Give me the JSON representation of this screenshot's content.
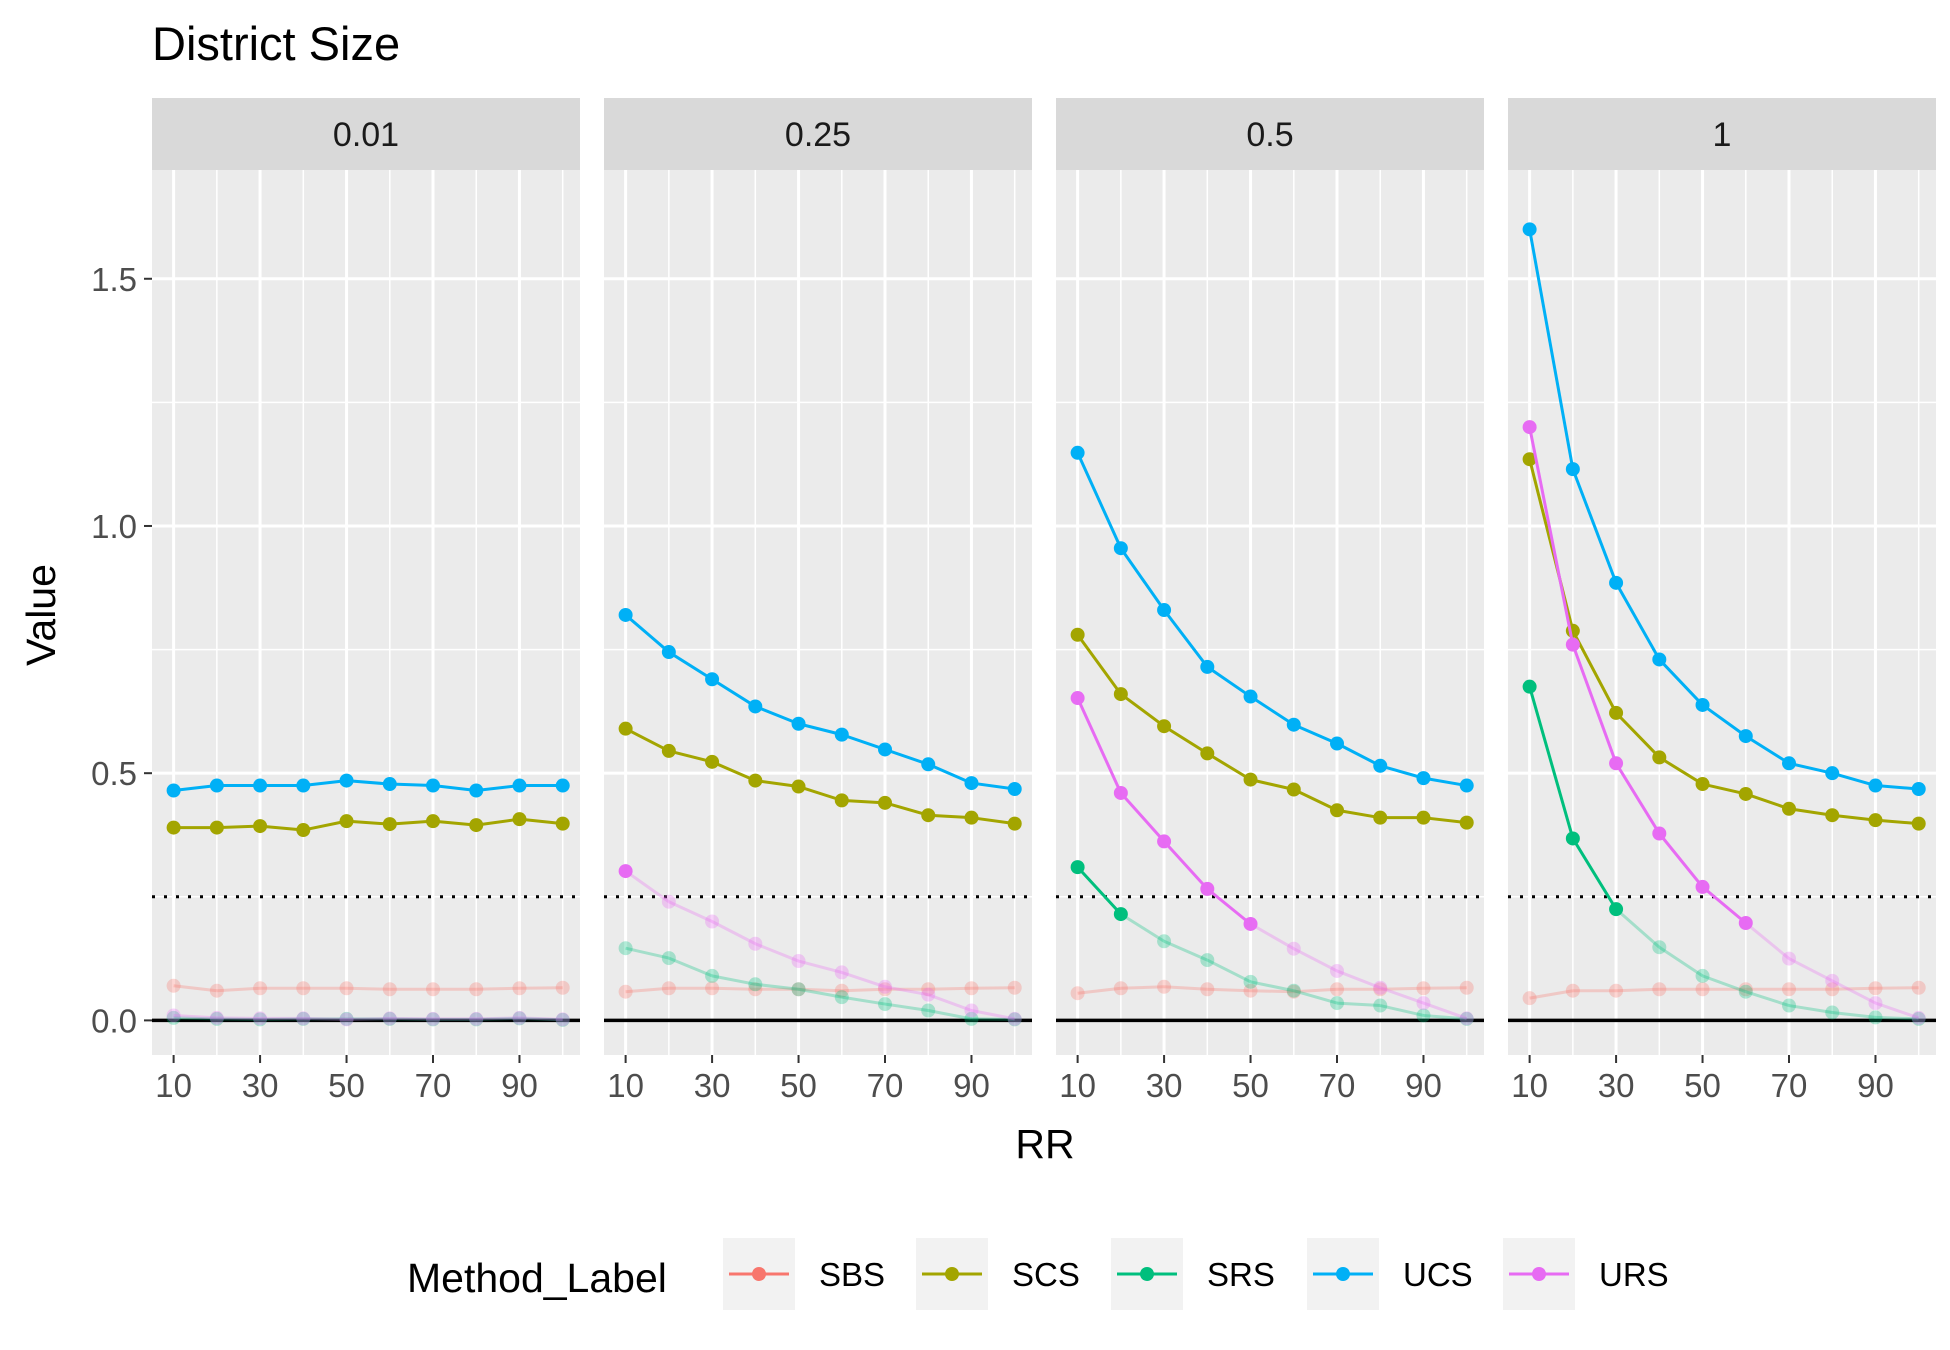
{
  "chart_data": {
    "type": "line",
    "title": "District Size",
    "xlabel": "RR",
    "ylabel": "Value",
    "facet_labels": [
      "0.01",
      "0.25",
      "0.5",
      "1"
    ],
    "xlim": [
      5,
      104
    ],
    "ylim": [
      -0.07,
      1.72
    ],
    "x": [
      10,
      20,
      30,
      40,
      50,
      60,
      70,
      80,
      90,
      100
    ],
    "x_ticks": [
      10,
      30,
      50,
      70,
      90
    ],
    "y_ticks": [
      0.0,
      0.5,
      1.0,
      1.5
    ],
    "y_tick_labels": [
      "0.0",
      "0.5",
      "1.0",
      "1.5"
    ],
    "reference_lines": [
      {
        "y": 0.0,
        "style": "solid"
      },
      {
        "y": 0.25,
        "style": "dotted"
      }
    ],
    "legend": {
      "title": "Method_Label",
      "position": "bottom"
    },
    "faded_points_note": "faded",
    "series": [
      {
        "name": "SBS",
        "color": "#F8766D",
        "panels": [
          [
            0.07,
            0.06,
            0.065,
            0.065,
            0.065,
            0.063,
            0.063,
            0.063,
            0.065,
            0.066
          ],
          [
            0.058,
            0.065,
            0.065,
            0.063,
            0.063,
            0.06,
            0.063,
            0.063,
            0.065,
            0.066
          ],
          [
            0.055,
            0.065,
            0.068,
            0.063,
            0.06,
            0.058,
            0.063,
            0.063,
            0.065,
            0.066
          ],
          [
            0.045,
            0.06,
            0.06,
            0.063,
            0.063,
            0.063,
            0.063,
            0.063,
            0.065,
            0.066
          ]
        ]
      },
      {
        "name": "SCS",
        "color": "#A3A500",
        "panels": [
          [
            0.39,
            0.39,
            0.393,
            0.385,
            0.403,
            0.397,
            0.403,
            0.395,
            0.407,
            0.398
          ],
          [
            0.59,
            0.545,
            0.523,
            0.485,
            0.473,
            0.445,
            0.44,
            0.415,
            0.41,
            0.398
          ],
          [
            0.78,
            0.66,
            0.595,
            0.54,
            0.487,
            0.467,
            0.425,
            0.41,
            0.41,
            0.4
          ],
          [
            1.135,
            0.788,
            0.622,
            0.532,
            0.478,
            0.458,
            0.428,
            0.415,
            0.405,
            0.398
          ]
        ]
      },
      {
        "name": "SRS",
        "color": "#00BF7D",
        "panels": [
          [
            0.005,
            0.003,
            0.002,
            0.003,
            0.003,
            0.003,
            0.002,
            0.002,
            0.004,
            0.001
          ],
          [
            0.146,
            0.126,
            0.09,
            0.073,
            0.063,
            0.047,
            0.033,
            0.02,
            0.003,
            0.002
          ],
          [
            0.31,
            0.215,
            0.16,
            0.122,
            0.078,
            0.06,
            0.035,
            0.03,
            0.01,
            0.003
          ],
          [
            0.675,
            0.368,
            0.225,
            0.148,
            0.09,
            0.058,
            0.03,
            0.016,
            0.006,
            0.003
          ]
        ]
      },
      {
        "name": "UCS",
        "color": "#00B0F6",
        "panels": [
          [
            0.465,
            0.475,
            0.475,
            0.475,
            0.485,
            0.478,
            0.475,
            0.465,
            0.475,
            0.475
          ],
          [
            0.82,
            0.745,
            0.69,
            0.635,
            0.6,
            0.578,
            0.548,
            0.518,
            0.48,
            0.468
          ],
          [
            1.148,
            0.955,
            0.83,
            0.715,
            0.655,
            0.598,
            0.56,
            0.515,
            0.49,
            0.475
          ],
          [
            1.6,
            1.115,
            0.885,
            0.73,
            0.638,
            0.575,
            0.52,
            0.5,
            0.475,
            0.468
          ]
        ]
      },
      {
        "name": "URS",
        "color": "#E76BF3",
        "panels": [
          [
            0.01,
            0.005,
            0.004,
            0.004,
            0.002,
            0.004,
            0.003,
            0.003,
            0.005,
            0.002
          ],
          [
            0.302,
            0.24,
            0.2,
            0.155,
            0.12,
            0.097,
            0.068,
            0.052,
            0.02,
            0.003
          ],
          [
            0.652,
            0.46,
            0.362,
            0.266,
            0.195,
            0.145,
            0.1,
            0.066,
            0.035,
            0.004
          ],
          [
            1.2,
            0.76,
            0.52,
            0.378,
            0.27,
            0.197,
            0.125,
            0.08,
            0.035,
            0.005
          ]
        ]
      }
    ],
    "opaque_until_index": [
      {
        "SBS": -1,
        "SCS": 9,
        "SRS": -1,
        "UCS": 9,
        "URS": -1
      },
      {
        "SBS": -1,
        "SCS": 9,
        "SRS": -1,
        "UCS": 9,
        "URS": 0
      },
      {
        "SBS": -1,
        "SCS": 9,
        "SRS": 1,
        "UCS": 9,
        "URS": 4
      },
      {
        "SBS": -1,
        "SCS": 9,
        "SRS": 2,
        "UCS": 9,
        "URS": 5
      }
    ]
  }
}
